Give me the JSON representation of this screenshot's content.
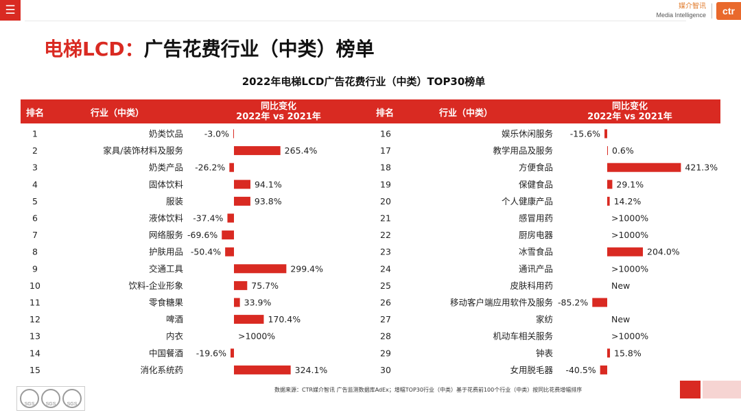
{
  "header": {
    "menu_icon": "menu-icon",
    "logo_cn": "媒介智讯",
    "logo_en": "Media Intelligence",
    "logo_mark": "ctr"
  },
  "page_title": {
    "red": "电梯LCD：",
    "black": "广告花费行业（中类）榜单"
  },
  "table_headers": {
    "rank": "排名",
    "industry": "行业（中类）",
    "change_l1": "同比变化",
    "change_l2": "2022年 vs 2021年"
  },
  "colors": {
    "accent": "#d92a22"
  },
  "chart_data": {
    "type": "bar",
    "orientation": "horizontal",
    "title": "2022年电梯LCD广告花费行业（中类）TOP30榜单",
    "value_unit": "%",
    "rows": [
      {
        "rank": "1",
        "industry": "奶类饮品",
        "value": -3.0,
        "label": "-3.0%"
      },
      {
        "rank": "2",
        "industry": "家具/装饰材料及服务",
        "value": 265.4,
        "label": "265.4%"
      },
      {
        "rank": "3",
        "industry": "奶类产品",
        "value": -26.2,
        "label": "-26.2%"
      },
      {
        "rank": "4",
        "industry": "固体饮料",
        "value": 94.1,
        "label": "94.1%"
      },
      {
        "rank": "5",
        "industry": "服装",
        "value": 93.8,
        "label": "93.8%"
      },
      {
        "rank": "6",
        "industry": "液体饮料",
        "value": -37.4,
        "label": "-37.4%"
      },
      {
        "rank": "7",
        "industry": "网络服务",
        "value": -69.6,
        "label": "-69.6%"
      },
      {
        "rank": "8",
        "industry": "护肤用品",
        "value": -50.4,
        "label": "-50.4%"
      },
      {
        "rank": "9",
        "industry": "交通工具",
        "value": 299.4,
        "label": "299.4%"
      },
      {
        "rank": "10",
        "industry": "饮料-企业形象",
        "value": 75.7,
        "label": "75.7%"
      },
      {
        "rank": "11",
        "industry": "零食糖果",
        "value": 33.9,
        "label": "33.9%"
      },
      {
        "rank": "12",
        "industry": "啤酒",
        "value": 170.4,
        "label": "170.4%"
      },
      {
        "rank": "13",
        "industry": "内衣",
        "value": null,
        "label": ">1000%"
      },
      {
        "rank": "14",
        "industry": "中国餐酒",
        "value": -19.6,
        "label": "-19.6%"
      },
      {
        "rank": "15",
        "industry": "消化系统药",
        "value": 324.1,
        "label": "324.1%"
      },
      {
        "rank": "16",
        "industry": "娱乐休闲服务",
        "value": -15.6,
        "label": "-15.6%"
      },
      {
        "rank": "17",
        "industry": "教学用品及服务",
        "value": 0.6,
        "label": "0.6%"
      },
      {
        "rank": "18",
        "industry": "方便食品",
        "value": 421.3,
        "label": "421.3%"
      },
      {
        "rank": "19",
        "industry": "保健食品",
        "value": 29.1,
        "label": "29.1%"
      },
      {
        "rank": "20",
        "industry": "个人健康产品",
        "value": 14.2,
        "label": "14.2%"
      },
      {
        "rank": "21",
        "industry": "感冒用药",
        "value": null,
        "label": ">1000%"
      },
      {
        "rank": "22",
        "industry": "厨房电器",
        "value": null,
        "label": ">1000%"
      },
      {
        "rank": "23",
        "industry": "冰雪食品",
        "value": 204.0,
        "label": "204.0%"
      },
      {
        "rank": "24",
        "industry": "通讯产品",
        "value": null,
        "label": ">1000%"
      },
      {
        "rank": "25",
        "industry": "皮肤科用药",
        "value": null,
        "label": "New"
      },
      {
        "rank": "26",
        "industry": "移动客户端应用软件及服务",
        "value": -85.2,
        "label": "-85.2%"
      },
      {
        "rank": "27",
        "industry": "家纺",
        "value": null,
        "label": "New"
      },
      {
        "rank": "28",
        "industry": "机动车相关服务",
        "value": null,
        "label": ">1000%"
      },
      {
        "rank": "29",
        "industry": "钟表",
        "value": 15.8,
        "label": "15.8%"
      },
      {
        "rank": "30",
        "industry": "女用脱毛器",
        "value": -40.5,
        "label": "-40.5%"
      }
    ]
  },
  "footer": {
    "note": "数据来源：CTR媒介智讯 广告监测数据库AdEx；增幅TOP30行业（中类）基于花费前100个行业（中类）按同比花费增幅排序",
    "seal_label": "SGS"
  }
}
